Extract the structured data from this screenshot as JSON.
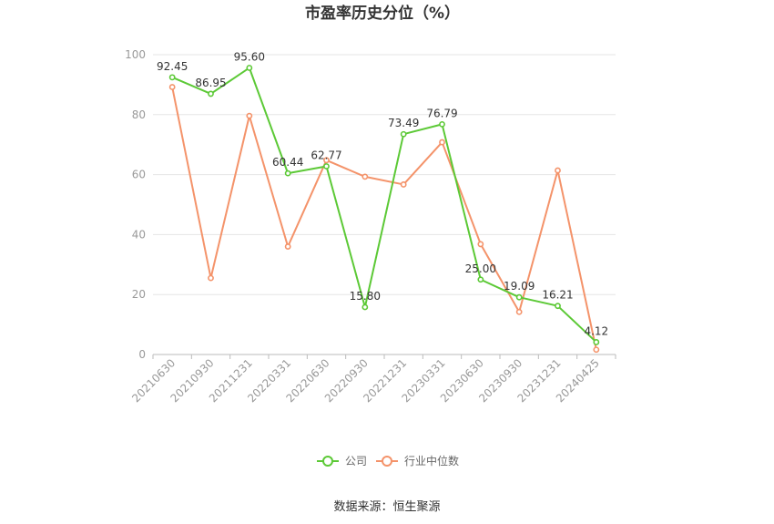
{
  "chart_data": {
    "type": "line",
    "title": "市盈率历史分位（%）",
    "categories": [
      "20210630",
      "20210930",
      "20211231",
      "20220331",
      "20220630",
      "20220930",
      "20221231",
      "20230331",
      "20230630",
      "20230930",
      "20231231",
      "20240425"
    ],
    "series": [
      {
        "name": "公司",
        "color": "#5cc936",
        "values": [
          92.45,
          86.95,
          95.6,
          60.44,
          62.77,
          15.8,
          73.49,
          76.79,
          25.0,
          19.09,
          16.21,
          4.12
        ],
        "labels": [
          "92.45",
          "86.95",
          "95.60",
          "60.44",
          "62.77",
          "15.80",
          "73.49",
          "76.79",
          "25.00",
          "19.09",
          "16.21",
          "4.12"
        ]
      },
      {
        "name": "行业中位数",
        "color": "#f4936a",
        "values": [
          89.2,
          25.5,
          79.6,
          36.0,
          64.8,
          59.3,
          56.7,
          70.8,
          36.8,
          14.2,
          61.4,
          1.6
        ]
      }
    ],
    "ylim": [
      0,
      100
    ],
    "yticks": [
      "0",
      "20",
      "40",
      "60",
      "80",
      "100"
    ],
    "grid": true,
    "legend": "bottom-center",
    "source": "数据来源：恒生聚源"
  }
}
